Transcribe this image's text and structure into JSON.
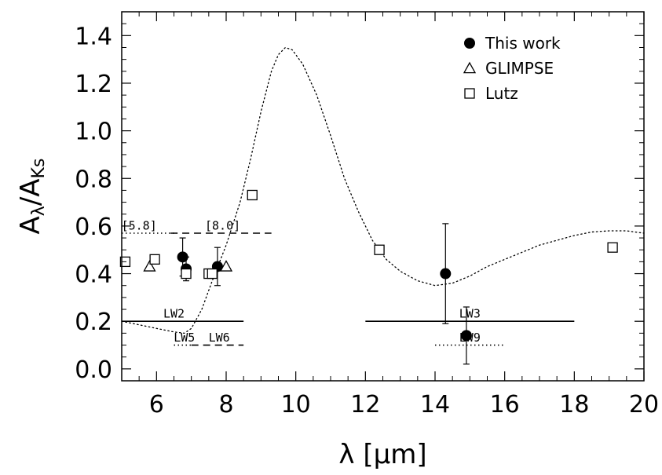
{
  "chart_data": {
    "type": "scatter",
    "xlabel": "λ [μm]",
    "ylabel": "A",
    "ylabel_sub1": "λ",
    "ylabel_sep": "/A",
    "ylabel_sub2": "Ks",
    "xlim": [
      5,
      20
    ],
    "ylim": [
      -0.05,
      1.5
    ],
    "x_ticks": [
      6,
      8,
      10,
      12,
      14,
      16,
      18,
      20
    ],
    "x_tick_labels": [
      "6",
      "8",
      "10",
      "12",
      "14",
      "16",
      "18",
      "20"
    ],
    "y_ticks": [
      0.0,
      0.2,
      0.4,
      0.6,
      0.8,
      1.0,
      1.2,
      1.4
    ],
    "y_tick_labels": [
      "0.0",
      "0.2",
      "0.4",
      "0.6",
      "0.8",
      "1.0",
      "1.2",
      "1.4"
    ],
    "legend_position": "top-right",
    "series": [
      {
        "name": "This work",
        "marker": "filled-circle",
        "points": [
          {
            "x": 6.75,
            "y": 0.47,
            "err": 0.08
          },
          {
            "x": 6.85,
            "y": 0.42,
            "err": 0.05
          },
          {
            "x": 7.75,
            "y": 0.43,
            "err": 0.08
          },
          {
            "x": 14.3,
            "y": 0.4,
            "err": 0.21
          },
          {
            "x": 14.9,
            "y": 0.14,
            "err": 0.12
          }
        ]
      },
      {
        "name": "GLIMPSE",
        "marker": "open-triangle",
        "points": [
          {
            "x": 5.8,
            "y": 0.43
          },
          {
            "x": 8.0,
            "y": 0.43
          }
        ]
      },
      {
        "name": "Lutz",
        "marker": "open-square",
        "points": [
          {
            "x": 5.1,
            "y": 0.45
          },
          {
            "x": 5.95,
            "y": 0.46
          },
          {
            "x": 6.85,
            "y": 0.4
          },
          {
            "x": 7.5,
            "y": 0.4
          },
          {
            "x": 7.6,
            "y": 0.4
          },
          {
            "x": 8.75,
            "y": 0.73
          },
          {
            "x": 12.4,
            "y": 0.5
          },
          {
            "x": 19.1,
            "y": 0.51
          }
        ]
      }
    ],
    "model_curve": [
      [
        5.0,
        0.2
      ],
      [
        5.5,
        0.185
      ],
      [
        6.0,
        0.17
      ],
      [
        6.5,
        0.155
      ],
      [
        6.8,
        0.15
      ],
      [
        7.0,
        0.17
      ],
      [
        7.3,
        0.25
      ],
      [
        7.6,
        0.37
      ],
      [
        8.0,
        0.52
      ],
      [
        8.4,
        0.7
      ],
      [
        8.7,
        0.88
      ],
      [
        9.0,
        1.08
      ],
      [
        9.3,
        1.25
      ],
      [
        9.5,
        1.32
      ],
      [
        9.7,
        1.35
      ],
      [
        9.9,
        1.34
      ],
      [
        10.2,
        1.28
      ],
      [
        10.6,
        1.15
      ],
      [
        11.0,
        0.98
      ],
      [
        11.4,
        0.8
      ],
      [
        11.8,
        0.66
      ],
      [
        12.2,
        0.54
      ],
      [
        12.6,
        0.46
      ],
      [
        13.0,
        0.41
      ],
      [
        13.5,
        0.37
      ],
      [
        14.0,
        0.35
      ],
      [
        14.5,
        0.36
      ],
      [
        15.0,
        0.39
      ],
      [
        15.5,
        0.43
      ],
      [
        16.0,
        0.46
      ],
      [
        16.5,
        0.49
      ],
      [
        17.0,
        0.52
      ],
      [
        17.5,
        0.54
      ],
      [
        18.0,
        0.56
      ],
      [
        18.5,
        0.575
      ],
      [
        19.0,
        0.58
      ],
      [
        19.5,
        0.58
      ],
      [
        20.0,
        0.57
      ]
    ],
    "bands": [
      {
        "label": "[5.8]",
        "x0": 5.0,
        "x1": 6.6,
        "y": 0.57,
        "style": "dotted",
        "label_x": 5.5,
        "label_y": 0.585
      },
      {
        "label": "[8.0]",
        "x0": 6.4,
        "x1": 9.3,
        "y": 0.57,
        "style": "dashed",
        "label_x": 7.9,
        "label_y": 0.585
      },
      {
        "label": "LW2",
        "x0": 5.0,
        "x1": 8.5,
        "y": 0.2,
        "style": "solid",
        "label_x": 6.5,
        "label_y": 0.215
      },
      {
        "label": "LW3",
        "x0": 12.0,
        "x1": 18.0,
        "y": 0.2,
        "style": "solid",
        "label_x": 15.0,
        "label_y": 0.215
      },
      {
        "label": "LW5",
        "x0": 6.5,
        "x1": 7.0,
        "y": 0.1,
        "style": "dotted",
        "label_x": 6.8,
        "label_y": 0.115
      },
      {
        "label": "LW6",
        "x0": 7.0,
        "x1": 8.5,
        "y": 0.1,
        "style": "dashed",
        "label_x": 7.8,
        "label_y": 0.115
      },
      {
        "label": "LW9",
        "x0": 14.0,
        "x1": 16.0,
        "y": 0.1,
        "style": "dotted",
        "label_x": 15.0,
        "label_y": 0.115
      }
    ]
  }
}
